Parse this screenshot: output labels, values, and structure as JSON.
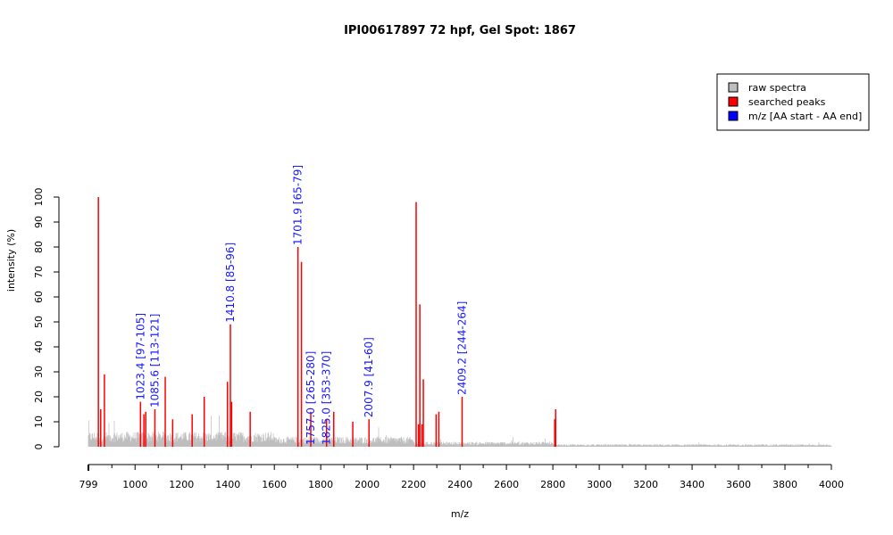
{
  "chart_data": {
    "type": "bar",
    "title": "IPI00617897  72 hpf, Gel Spot: 1867",
    "xlabel": "m/z",
    "ylabel": "intensity (%)",
    "xlim": [
      799,
      4000
    ],
    "ylim": [
      0,
      100
    ],
    "x_ticks": [
      "799",
      "1000",
      "1200",
      "1400",
      "1600",
      "1800",
      "2000",
      "2200",
      "2400",
      "2600",
      "2800",
      "3000",
      "3200",
      "3400",
      "3600",
      "3800",
      "4000"
    ],
    "y_ticks": [
      "0",
      "10",
      "20",
      "30",
      "40",
      "50",
      "60",
      "70",
      "80",
      "90",
      "100"
    ],
    "legend": {
      "placement": "top-right",
      "entries": [
        {
          "label": "raw spectra",
          "color": "#bebebe"
        },
        {
          "label": "searched peaks",
          "color": "#ff0000"
        },
        {
          "label": "m/z [AA start - AA end]",
          "color": "#0000ff"
        }
      ]
    },
    "series": [
      {
        "name": "searched peaks",
        "color": "#ff0000",
        "points": [
          {
            "x": 842,
            "y": 100
          },
          {
            "x": 852,
            "y": 15
          },
          {
            "x": 868,
            "y": 29
          },
          {
            "x": 1023.4,
            "y": 18
          },
          {
            "x": 1038,
            "y": 13
          },
          {
            "x": 1046,
            "y": 14
          },
          {
            "x": 1085.6,
            "y": 15
          },
          {
            "x": 1130,
            "y": 28
          },
          {
            "x": 1162,
            "y": 11
          },
          {
            "x": 1246,
            "y": 13
          },
          {
            "x": 1298,
            "y": 20
          },
          {
            "x": 1398,
            "y": 26
          },
          {
            "x": 1410.8,
            "y": 49
          },
          {
            "x": 1416,
            "y": 18
          },
          {
            "x": 1496,
            "y": 14
          },
          {
            "x": 1701.9,
            "y": 80
          },
          {
            "x": 1717,
            "y": 74
          },
          {
            "x": 1757.0,
            "y": 14
          },
          {
            "x": 1825.0,
            "y": 11
          },
          {
            "x": 1856,
            "y": 14
          },
          {
            "x": 1938,
            "y": 10
          },
          {
            "x": 2007.9,
            "y": 11
          },
          {
            "x": 2211,
            "y": 98
          },
          {
            "x": 2221,
            "y": 9
          },
          {
            "x": 2227,
            "y": 57
          },
          {
            "x": 2236,
            "y": 9
          },
          {
            "x": 2242,
            "y": 27
          },
          {
            "x": 2297,
            "y": 13
          },
          {
            "x": 2309,
            "y": 14
          },
          {
            "x": 2409.2,
            "y": 20
          },
          {
            "x": 2808,
            "y": 11
          },
          {
            "x": 2812,
            "y": 15
          }
        ]
      }
    ],
    "annotations": [
      {
        "x": 1023.4,
        "y": 18,
        "label": "1023.4 [97-105]"
      },
      {
        "x": 1085.6,
        "y": 15,
        "label": "1085.6 [113-121]"
      },
      {
        "x": 1410.8,
        "y": 49,
        "label": "1410.8 [85-96]"
      },
      {
        "x": 1701.9,
        "y": 80,
        "label": "1701.9 [65-79]"
      },
      {
        "x": 1757.0,
        "y": 0,
        "label": "1757.0 [265-280]"
      },
      {
        "x": 1825.0,
        "y": 0,
        "label": "1825.0 [353-370]"
      },
      {
        "x": 2007.9,
        "y": 11,
        "label": "2007.9 [41-60]"
      },
      {
        "x": 2409.2,
        "y": 20,
        "label": "2409.2 [244-264]"
      }
    ],
    "raw_spectra": {
      "color": "#bebebe",
      "baseline_levels": [
        {
          "x_from": 799,
          "x_to": 1600,
          "level": 6
        },
        {
          "x_from": 1600,
          "x_to": 2200,
          "level": 4
        },
        {
          "x_from": 2200,
          "x_to": 2800,
          "level": 2
        },
        {
          "x_from": 2800,
          "x_to": 4000,
          "level": 1
        }
      ]
    }
  }
}
